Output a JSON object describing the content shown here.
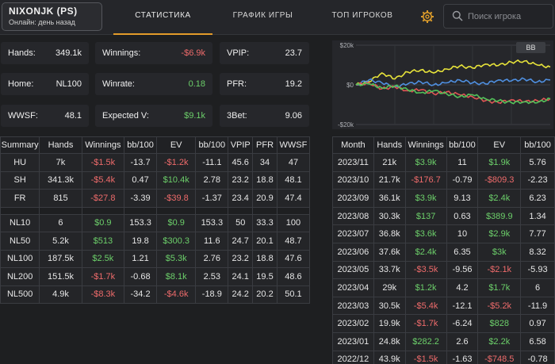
{
  "player": {
    "name": "NIXONJK (PS)",
    "status": "Онлайн: день назад"
  },
  "tabs": [
    {
      "label": "СТАТИСТИКА",
      "active": true
    },
    {
      "label": "ГРАФИК ИГРЫ",
      "active": false
    },
    {
      "label": "ТОП ИГРОКОВ",
      "active": false
    }
  ],
  "search": {
    "placeholder": "Поиск игрока"
  },
  "icons": {
    "settings": "gear-icon",
    "search": "search-icon"
  },
  "colors": {
    "accent": "#e39b2a",
    "positive": "#6ccf6a",
    "negative": "#ee6b6b"
  },
  "stats": {
    "hands": {
      "label": "Hands:",
      "value": "349.1k"
    },
    "winnings": {
      "label": "Winnings:",
      "value": "-$6.9k"
    },
    "vpip": {
      "label": "VPIP:",
      "value": "23.7"
    },
    "home": {
      "label": "Home:",
      "value": "NL100"
    },
    "winrate": {
      "label": "Winrate:",
      "value": "0.18"
    },
    "pfr": {
      "label": "PFR:",
      "value": "19.2"
    },
    "wwsf": {
      "label": "WWSF:",
      "value": "48.1"
    },
    "ev": {
      "label": "Expected V:",
      "value": "$9.1k"
    },
    "bet3": {
      "label": "3Bet:",
      "value": "9.06"
    }
  },
  "chart": {
    "button": "BB",
    "ylabels": [
      "$20k",
      "$0",
      "-$20k"
    ]
  },
  "chart_data": {
    "type": "line",
    "ylim": [
      -20000,
      20000
    ],
    "yticks": [
      "$20k",
      "$0",
      "-$20k"
    ],
    "grid": true,
    "series": [
      {
        "color": "#e7e33a",
        "values": [
          0,
          1500,
          6000,
          3000,
          6500,
          7500,
          6000,
          8000,
          9500,
          8500,
          10500,
          9800,
          11500,
          12000,
          10000,
          9000
        ]
      },
      {
        "color": "#4f8fe0",
        "values": [
          0,
          2500,
          1000,
          -1000,
          500,
          1500,
          0,
          1000,
          2500,
          1000,
          500,
          2500,
          2000,
          3000,
          1500,
          2500
        ]
      },
      {
        "color": "#e15555",
        "values": [
          0,
          1000,
          -2000,
          -1000,
          -3000,
          -2500,
          -4500,
          -3500,
          -5000,
          -6000,
          -8000,
          -9000,
          -7500,
          -8500,
          -8000,
          -7000
        ]
      },
      {
        "color": "#53c25a",
        "values": [
          0,
          500,
          -1500,
          -500,
          -2500,
          -4000,
          -3000,
          -4500,
          -6000,
          -5000,
          -7000,
          -8000,
          -9000,
          -8500,
          -9000,
          -7000
        ]
      }
    ]
  },
  "summary": {
    "headers": [
      "Summary",
      "Hands",
      "Winnings",
      "bb/100",
      "EV",
      "bb/100",
      "VPIP",
      "PFR",
      "WWSF"
    ],
    "groups": [
      [
        [
          "HU",
          "7k",
          "-$1.5k",
          "-13.7",
          "-$1.2k",
          "-11.1",
          "45.6",
          "34",
          "47"
        ],
        [
          "SH",
          "341.3k",
          "-$5.4k",
          "0.47",
          "$10.4k",
          "2.78",
          "23.2",
          "18.8",
          "48.1"
        ],
        [
          "FR",
          "815",
          "-$27.8",
          "-3.39",
          "-$39.8",
          "-1.37",
          "23.4",
          "20.9",
          "47.4"
        ]
      ],
      [
        [
          "NL10",
          "6",
          "$0.9",
          "153.3",
          "$0.9",
          "153.3",
          "50",
          "33.3",
          "100"
        ],
        [
          "NL50",
          "5.2k",
          "$513",
          "19.8",
          "$300.3",
          "11.6",
          "24.7",
          "20.1",
          "48.7"
        ],
        [
          "NL100",
          "187.5k",
          "$2.5k",
          "1.21",
          "$5.3k",
          "2.76",
          "23.2",
          "18.8",
          "47.6"
        ],
        [
          "NL200",
          "151.5k",
          "-$1.7k",
          "-0.68",
          "$8.1k",
          "2.53",
          "24.1",
          "19.5",
          "48.6"
        ],
        [
          "NL500",
          "4.9k",
          "-$8.3k",
          "-34.2",
          "-$4.6k",
          "-18.9",
          "24.2",
          "20.2",
          "50.1"
        ]
      ]
    ]
  },
  "monthly": {
    "headers": [
      "Month",
      "Hands",
      "Winnings",
      "bb/100",
      "EV",
      "bb/100"
    ],
    "rows": [
      [
        "2023/11",
        "21k",
        "$3.9k",
        "11",
        "$1.9k",
        "5.76"
      ],
      [
        "2023/10",
        "21.7k",
        "-$176.7",
        "-0.79",
        "-$809.3",
        "-2.23"
      ],
      [
        "2023/09",
        "36.1k",
        "$3.9k",
        "9.13",
        "$2.4k",
        "6.23"
      ],
      [
        "2023/08",
        "30.3k",
        "$137",
        "0.63",
        "$389.9",
        "1.34"
      ],
      [
        "2023/07",
        "36.8k",
        "$3.6k",
        "10",
        "$2.9k",
        "7.77"
      ],
      [
        "2023/06",
        "37.6k",
        "$2.4k",
        "6.35",
        "$3k",
        "8.32"
      ],
      [
        "2023/05",
        "33.7k",
        "-$3.5k",
        "-9.56",
        "-$2.1k",
        "-5.93"
      ],
      [
        "2023/04",
        "29k",
        "$1.2k",
        "4.2",
        "$1.7k",
        "6"
      ],
      [
        "2023/03",
        "30.5k",
        "-$5.4k",
        "-12.1",
        "-$5.2k",
        "-11.9"
      ],
      [
        "2023/02",
        "19.9k",
        "-$1.7k",
        "-6.24",
        "$828",
        "0.97"
      ],
      [
        "2023/01",
        "24.8k",
        "$282.2",
        "2.6",
        "$2.2k",
        "6.58"
      ],
      [
        "2022/12",
        "43.9k",
        "-$1.5k",
        "-1.63",
        "-$748.5",
        "-0.78"
      ]
    ]
  }
}
